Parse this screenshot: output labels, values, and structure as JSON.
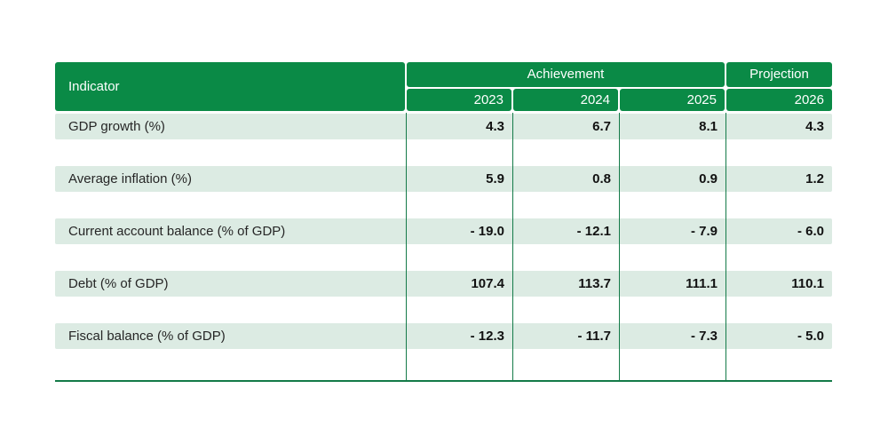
{
  "table": {
    "header": {
      "indicator": "Indicator",
      "achievement": "Achievement",
      "projection": "Projection",
      "years": [
        "2023",
        "2024",
        "2025",
        "2026"
      ]
    },
    "rows": [
      {
        "label": "GDP growth (%)",
        "values": [
          "4.3",
          "6.7",
          "8.1",
          "4.3"
        ]
      },
      {
        "label": "Average inflation (%)",
        "values": [
          "5.9",
          "0.8",
          "0.9",
          "1.2"
        ]
      },
      {
        "label": "Current account balance (% of GDP)",
        "values": [
          "- 19.0",
          "- 12.1",
          "- 7.9",
          "- 6.0"
        ]
      },
      {
        "label": "Debt (% of GDP)",
        "values": [
          "107.4",
          "113.7",
          "111.1",
          "110.1"
        ]
      },
      {
        "label": "Fiscal balance (% of GDP)",
        "values": [
          "- 12.3",
          "- 11.7",
          "- 7.3",
          "- 5.0"
        ]
      }
    ],
    "colors": {
      "header_green": "#0a8a46",
      "grid_green": "#147a48",
      "row_band_green": "#dcebe3"
    }
  },
  "chart_data": {
    "type": "table",
    "title": "",
    "columns": [
      "Indicator",
      "2023",
      "2024",
      "2025",
      "2026"
    ],
    "column_groups": [
      {
        "label": "Achievement",
        "columns": [
          "2023",
          "2024",
          "2025"
        ]
      },
      {
        "label": "Projection",
        "columns": [
          "2026"
        ]
      }
    ],
    "rows": [
      [
        "GDP growth (%)",
        4.3,
        6.7,
        8.1,
        4.3
      ],
      [
        "Average inflation (%)",
        5.9,
        0.8,
        0.9,
        1.2
      ],
      [
        "Current account balance (% of GDP)",
        -19.0,
        -12.1,
        -7.9,
        -6.0
      ],
      [
        "Debt (% of GDP)",
        107.4,
        113.7,
        111.1,
        110.1
      ],
      [
        "Fiscal balance (% of GDP)",
        -12.3,
        -11.7,
        -7.3,
        -5.0
      ]
    ]
  }
}
